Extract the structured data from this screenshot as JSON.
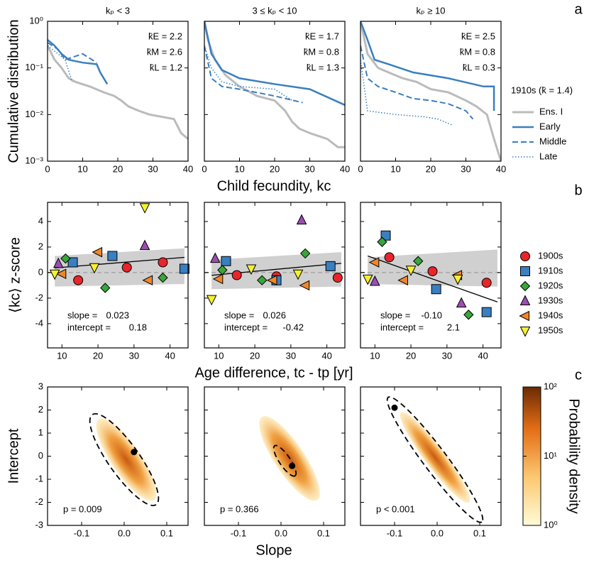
{
  "chart_data": [
    {
      "type": "line",
      "panel_label": "a",
      "ylabel": "Cumulative distribution",
      "xlabel": "Child fecundity, kc",
      "log_y": true,
      "xlim": [
        0,
        40
      ],
      "xticks": [
        0,
        10,
        20,
        30,
        40
      ],
      "ylim": [
        0.001,
        1
      ],
      "yticks": [
        {
          "value": 1,
          "label": "10⁰"
        },
        {
          "value": 0.1,
          "label": "10⁻¹"
        },
        {
          "value": 0.01,
          "label": "10⁻²"
        },
        {
          "value": 0.001,
          "label": "10⁻³"
        }
      ],
      "legend_title": "1910s (k̄ = 1.4)",
      "series": [
        {
          "name": "Ens. I",
          "color": "#bbbbbb",
          "dash": "none",
          "width": 3
        },
        {
          "name": "Early",
          "color": "#3a7fbf",
          "dash": "none",
          "width": 2.5
        },
        {
          "name": "Middle",
          "color": "#3a7fbf",
          "dash": "8 4",
          "width": 2
        },
        {
          "name": "Late",
          "color": "#3a7fbf",
          "dash": "1.5 2.5",
          "width": 1.5
        }
      ],
      "panels": [
        {
          "title": "kₚ < 3",
          "annotations": [
            "k̄E = 2.2",
            "k̄M = 2.6",
            "k̄L = 1.2"
          ],
          "series": [
            {
              "x": [
                0,
                2,
                4,
                6,
                8,
                12,
                16,
                19,
                21,
                23,
                26,
                29,
                36,
                38,
                40
              ],
              "y": [
                0.3,
                0.15,
                0.1,
                0.06,
                0.05,
                0.04,
                0.03,
                0.025,
                0.02,
                0.015,
                0.012,
                0.01,
                0.008,
                0.004,
                0.003
              ]
            },
            {
              "x": [
                0,
                2,
                4,
                6,
                10,
                14,
                15,
                17
              ],
              "y": [
                0.4,
                0.3,
                0.2,
                0.15,
                0.13,
                0.12,
                0.08,
                0.045
              ]
            },
            {
              "x": [
                0,
                3,
                5,
                10,
                14
              ],
              "y": [
                0.35,
                0.25,
                0.15,
                0.2,
                0.13
              ]
            },
            {
              "x": [
                0,
                3,
                5,
                7
              ],
              "y": [
                0.3,
                0.2,
                0.15,
                0.05
              ]
            }
          ]
        },
        {
          "title": "3 ≤ kₚ < 10",
          "annotations": [
            "k̄E = 1.7",
            "k̄M = 0.8",
            "k̄L = 1.3"
          ],
          "series": [
            {
              "x": [
                0,
                1,
                3,
                6,
                10,
                15,
                20,
                23,
                25,
                27,
                30,
                35,
                38,
                40
              ],
              "y": [
                1,
                0.4,
                0.15,
                0.07,
                0.04,
                0.025,
                0.02,
                0.012,
                0.007,
                0.005,
                0.004,
                0.003,
                0.002,
                0.002
              ]
            },
            {
              "x": [
                0,
                2,
                5,
                10,
                20,
                30,
                40
              ],
              "y": [
                1,
                0.2,
                0.09,
                0.06,
                0.045,
                0.035,
                0.016
              ]
            },
            {
              "x": [
                0,
                2,
                5,
                10,
                20,
                28
              ],
              "y": [
                0.3,
                0.06,
                0.04,
                0.035,
                0.025,
                0.018
              ]
            },
            {
              "x": [
                0,
                2,
                5,
                10,
                20,
                25
              ],
              "y": [
                0.3,
                0.1,
                0.05,
                0.04,
                0.035,
                0.02
              ]
            }
          ]
        },
        {
          "title": "kₚ ≥ 10",
          "annotations": [
            "k̄E = 2.5",
            "k̄M = 0.8",
            "k̄L = 0.3"
          ],
          "series": [
            {
              "x": [
                0,
                2,
                5,
                8,
                12,
                16,
                20,
                25,
                30,
                33,
                36,
                38,
                40
              ],
              "y": [
                1,
                0.2,
                0.1,
                0.08,
                0.06,
                0.05,
                0.035,
                0.03,
                0.02,
                0.015,
                0.01,
                0.003,
                0.001
              ]
            },
            {
              "x": [
                0,
                2,
                4,
                8,
                15,
                25,
                35,
                38,
                38
              ],
              "y": [
                1,
                0.4,
                0.15,
                0.12,
                0.08,
                0.06,
                0.04,
                0.04,
                0.012
              ]
            },
            {
              "x": [
                0,
                2,
                5,
                10,
                15,
                20,
                25,
                30,
                32
              ],
              "y": [
                0.3,
                0.06,
                0.04,
                0.03,
                0.022,
                0.02,
                0.017,
                0.012,
                0.008
              ]
            },
            {
              "x": [
                0,
                2,
                10,
                18,
                22,
                26
              ],
              "y": [
                0.15,
                0.012,
                0.01,
                0.009,
                0.008,
                0.006
              ]
            }
          ]
        }
      ]
    },
    {
      "type": "scatter",
      "panel_label": "b",
      "ylabel": "⟨kc⟩ z-score",
      "xlabel": "Age difference, tc - tp [yr]",
      "xlim": [
        6,
        45
      ],
      "xticks": [
        10,
        20,
        30,
        40
      ],
      "ylim": [
        -5.9,
        5.5
      ],
      "yticks": [
        -4,
        -2,
        0,
        2,
        4
      ],
      "series": [
        {
          "name": "1900s",
          "color": "#e8252a",
          "marker": "circle"
        },
        {
          "name": "1910s",
          "color": "#3a7fbf",
          "marker": "square"
        },
        {
          "name": "1920s",
          "color": "#3aa63a",
          "marker": "diamond"
        },
        {
          "name": "1930s",
          "color": "#9a4fb0",
          "marker": "triangle-up"
        },
        {
          "name": "1940s",
          "color": "#f0872a",
          "marker": "triangle-left"
        },
        {
          "name": "1950s",
          "color": "#f5f032",
          "marker": "triangle-down"
        }
      ],
      "panels": [
        {
          "fit": {
            "slope": 0.023,
            "intercept": 0.18
          },
          "slope_text": "slope =",
          "intercept_text": "intercept =",
          "band": {
            "x": [
              8,
              44
            ],
            "lower": [
              -1.1,
              -0.9
            ],
            "upper": [
              1.3,
              1.9
            ]
          },
          "series": [
            {
              "x": [
                14.5,
                28,
                38
              ],
              "y": [
                -0.6,
                0.4,
                0.8
              ]
            },
            {
              "x": [
                13,
                24,
                44
              ],
              "y": [
                0.8,
                1.3,
                0.3
              ]
            },
            {
              "x": [
                11,
                22,
                38
              ],
              "y": [
                1.1,
                -1.2,
                -0.4
              ]
            },
            {
              "x": [
                9,
                33
              ],
              "y": [
                0.7,
                2.1
              ]
            },
            {
              "x": [
                10,
                20,
                34
              ],
              "y": [
                -0.1,
                1.6,
                -0.6
              ]
            },
            {
              "x": [
                8,
                19,
                33
              ],
              "y": [
                -0.1,
                0.4,
                5.1
              ]
            }
          ]
        },
        {
          "fit": {
            "slope": 0.026,
            "intercept": -0.42
          },
          "slope_text": "slope =",
          "intercept_text": "intercept =",
          "band": {
            "x": [
              8,
              44
            ],
            "lower": [
              -1.3,
              -1.1
            ],
            "upper": [
              1.0,
              1.6
            ]
          },
          "series": [
            {
              "x": [
                15,
                26,
                43
              ],
              "y": [
                -0.2,
                -0.3,
                -0.4
              ]
            },
            {
              "x": [
                12,
                26,
                41
              ],
              "y": [
                0.9,
                -0.6,
                0.5
              ]
            },
            {
              "x": [
                11,
                22,
                34
              ],
              "y": [
                0.2,
                -0.6,
                1.5
              ]
            },
            {
              "x": [
                9,
                33
              ],
              "y": [
                1.1,
                4.1
              ]
            },
            {
              "x": [
                10,
                25,
                34
              ],
              "y": [
                -0.5,
                -0.6,
                -1.0
              ]
            },
            {
              "x": [
                8,
                19,
                32
              ],
              "y": [
                -2.1,
                0.3,
                -0.1
              ]
            }
          ]
        },
        {
          "fit": {
            "slope": -0.1,
            "intercept": 2.1,
            "slope_label": "-0.10"
          },
          "slope_text": "slope =",
          "intercept_text": "intercept =",
          "band": {
            "x": [
              8,
              44
            ],
            "lower": [
              -0.9,
              -1.1
            ],
            "upper": [
              1.2,
              1.8
            ]
          },
          "series": [
            {
              "x": [
                14,
                26,
                41
              ],
              "y": [
                1.2,
                0.1,
                -0.8
              ]
            },
            {
              "x": [
                13,
                27,
                41
              ],
              "y": [
                2.9,
                -1.3,
                -3.1
              ]
            },
            {
              "x": [
                12,
                22,
                36
              ],
              "y": [
                2.4,
                0.9,
                -3.3
              ]
            },
            {
              "x": [
                10,
                34
              ],
              "y": [
                -0.7,
                -2.4
              ]
            },
            {
              "x": [
                10,
                18,
                33
              ],
              "y": [
                0.8,
                -0.6,
                -0.2
              ]
            },
            {
              "x": [
                8,
                20,
                33
              ],
              "y": [
                -0.5,
                0.2,
                -0.5
              ]
            }
          ]
        }
      ]
    },
    {
      "type": "heatmap",
      "panel_label": "c",
      "ylabel": "Intercept",
      "xlabel": "Slope",
      "xlim": [
        -0.18,
        0.15
      ],
      "xticks": [
        -0.1,
        {
          "value": 0,
          "label": "0.0"
        },
        0.1
      ],
      "ylim": [
        -3,
        3
      ],
      "yticks": [
        -3,
        -2,
        -1,
        0,
        1,
        2,
        3
      ],
      "colorbar": {
        "label": "Probability density",
        "lim": [
          1,
          100
        ],
        "ticks": [
          {
            "value": 1,
            "label": "10⁰"
          },
          {
            "value": 10,
            "label": "10¹"
          },
          {
            "value": 100,
            "label": "10²"
          }
        ]
      },
      "panels": [
        {
          "p_text": "p = 0.009",
          "point": {
            "x": 0.023,
            "y": 0.18
          },
          "ellipse": {
            "x": [
              -0.075,
              0.075
            ],
            "y": [
              1.8,
              -2.1
            ],
            "aspect": 0.28
          },
          "cloud": {
            "x": [
              -0.06,
              0.07
            ],
            "y": [
              1.6,
              -1.9
            ],
            "aspect": 0.3
          }
        },
        {
          "p_text": "p = 0.366",
          "point": {
            "x": 0.026,
            "y": -0.42
          },
          "ellipse": {
            "x": [
              -0.015,
              0.033
            ],
            "y": [
              0.45,
              -0.85
            ],
            "aspect": 0.3
          },
          "cloud": {
            "x": [
              -0.045,
              0.085
            ],
            "y": [
              1.7,
              -1.9
            ],
            "aspect": 0.3
          }
        },
        {
          "p_text": "p < 0.001",
          "point": {
            "x": -0.1,
            "y": 2.1
          },
          "ellipse": {
            "x": [
              -0.115,
              0.105
            ],
            "y": [
              2.55,
              -2.85
            ],
            "aspect": 0.15
          },
          "cloud": {
            "x": [
              -0.085,
              0.075
            ],
            "y": [
              1.9,
              -2.0
            ],
            "aspect": 0.18
          }
        }
      ]
    }
  ]
}
